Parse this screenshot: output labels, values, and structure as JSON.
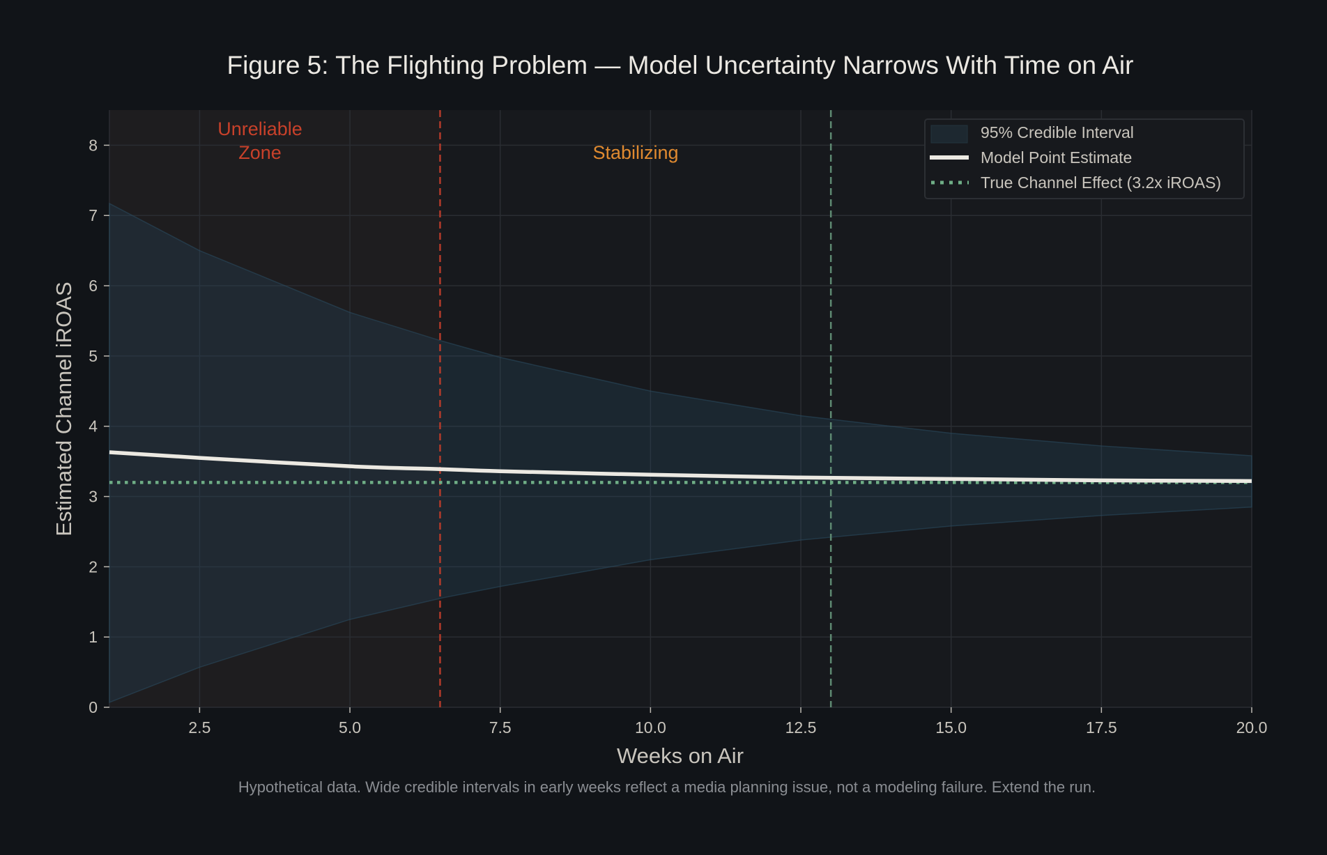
{
  "chart_data": {
    "type": "line",
    "title": "Figure 5: The Flighting Problem — Model Uncertainty Narrows With Time on Air",
    "xlabel": "Weeks on Air",
    "ylabel": "Estimated Channel iROAS",
    "xlim": [
      1,
      20
    ],
    "ylim": [
      0,
      8.5
    ],
    "grid": true,
    "xticks": [
      2.5,
      5.0,
      7.5,
      10.0,
      12.5,
      15.0,
      17.5,
      20.0
    ],
    "xtick_labels": [
      "2.5",
      "5.0",
      "7.5",
      "10.0",
      "12.5",
      "15.0",
      "17.5",
      "20.0"
    ],
    "yticks": [
      0,
      1,
      2,
      3,
      4,
      5,
      6,
      7,
      8
    ],
    "ytick_labels": [
      "0",
      "1",
      "2",
      "3",
      "4",
      "5",
      "6",
      "7",
      "8"
    ],
    "x": [
      1,
      2.5,
      5,
      6.5,
      7.5,
      10,
      12.5,
      15,
      17.5,
      20
    ],
    "series": [
      {
        "name": "95% Credible Interval",
        "kind": "band",
        "upper": [
          7.17,
          6.5,
          5.62,
          5.22,
          4.98,
          4.5,
          4.15,
          3.9,
          3.72,
          3.58
        ],
        "lower": [
          0.07,
          0.57,
          1.25,
          1.55,
          1.72,
          2.1,
          2.38,
          2.58,
          2.73,
          2.85
        ],
        "color": "#223344"
      },
      {
        "name": "Model Point Estimate",
        "kind": "line",
        "values": [
          3.63,
          3.55,
          3.43,
          3.39,
          3.36,
          3.31,
          3.27,
          3.25,
          3.23,
          3.22
        ],
        "color": "#ece9e2"
      },
      {
        "name": "True Channel Effect (3.2x iROAS)",
        "kind": "hline",
        "value": 3.2,
        "color": "#6fae86"
      }
    ],
    "vlines": [
      {
        "x": 6.5,
        "color": "#b33a2a"
      },
      {
        "x": 13,
        "color": "#5e8a72"
      }
    ],
    "shaded_region": {
      "x_from": 1,
      "x_to": 6.5,
      "color": "#1e1d1f"
    },
    "annotations": [
      {
        "text": "Unreliable\nZone",
        "line1": "Unreliable",
        "line2": "Zone",
        "x": 3.5,
        "y": 8.0,
        "color": "#c8412a"
      },
      {
        "text": "Stabilizing",
        "x": 9.75,
        "y": 7.85,
        "color": "#e08a30"
      }
    ],
    "legend_position": "top-right",
    "footnote": "Hypothetical data. Wide credible intervals in early weeks reflect a media planning issue, not a modeling failure. Extend the run."
  }
}
